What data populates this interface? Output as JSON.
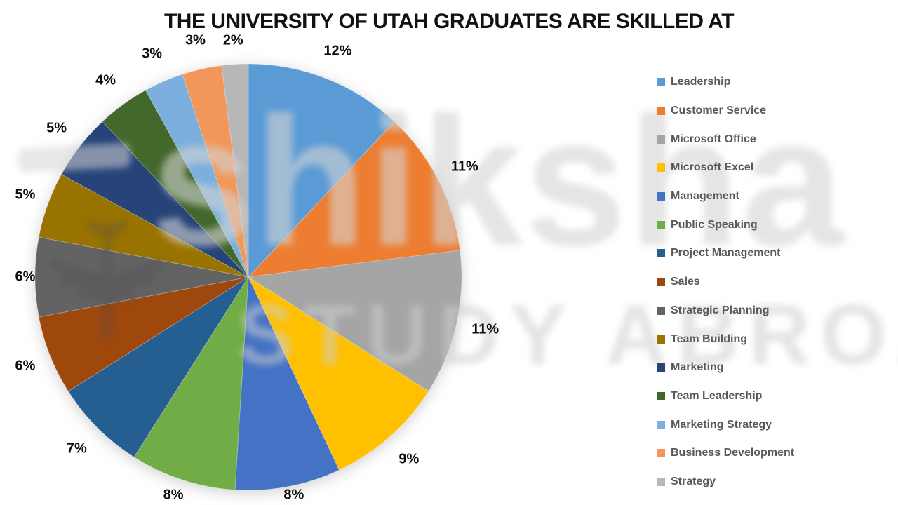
{
  "title": "THE UNIVERSITY OF UTAH GRADUATES ARE SKILLED AT",
  "chart_data": {
    "type": "pie",
    "title": "THE UNIVERSITY OF UTAH GRADUATES ARE SKILLED AT",
    "start_angle_deg": 0,
    "direction": "clockwise",
    "legend_position": "right",
    "data_label_format": "percent-outside-end",
    "categories": [
      "Leadership",
      "Customer Service",
      "Microsoft Office",
      "Microsoft Excel",
      "Management",
      "Public Speaking",
      "Project Management",
      "Sales",
      "Strategic Planning",
      "Team Building",
      "Marketing",
      "Team Leadership",
      "Marketing Strategy",
      "Business Development",
      "Strategy"
    ],
    "values": [
      12,
      11,
      11,
      9,
      8,
      8,
      7,
      6,
      6,
      5,
      5,
      4,
      3,
      3,
      2
    ],
    "data_labels": [
      "12%",
      "11%",
      "11%",
      "9%",
      "8%",
      "8%",
      "7%",
      "6%",
      "6%",
      "5%",
      "5%",
      "4%",
      "3%",
      "3%",
      "2%"
    ],
    "colors": [
      "#5B9BD5",
      "#ED7D31",
      "#A5A5A5",
      "#FFC000",
      "#4472C4",
      "#70AD47",
      "#255E91",
      "#9E480E",
      "#636363",
      "#997300",
      "#264478",
      "#43682B",
      "#7CAFDD",
      "#F1975A",
      "#B7B7B7"
    ],
    "legend_text_color": "#595959"
  },
  "watermark": {
    "brand": "shiksha",
    "tagline": "STUDY ABROAD",
    "plane_glyph": "✈"
  }
}
